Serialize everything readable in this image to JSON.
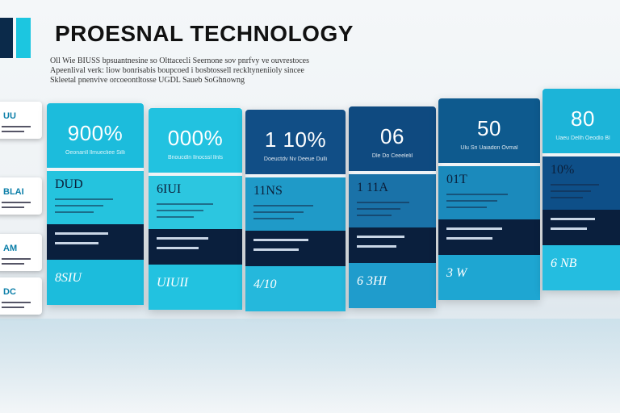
{
  "header": {
    "title": "PROESNAL TECHNOLOGY",
    "blurb": [
      "Oll Wie BIUSS bpsuantnesine so Olttacecli Seernone sov pnrfvy ve ouvrestoces",
      "Apeenlival verk: liow bonrisabis boupcoed i bosbtossell reckltyneniioly sincee",
      "Skleetal pnenvive orcoeontltosse UGDL Saueb SoGhnowng"
    ]
  },
  "side_tiles": [
    {
      "label": "UU"
    },
    {
      "label": "BLAI"
    },
    {
      "label": "AM"
    },
    {
      "label": "DC"
    }
  ],
  "panels": [
    {
      "big": "900%",
      "sub": "Oeonanll llmuecliee Silli",
      "mid": "DUD",
      "bottom": "8SIU",
      "top_color": "#1cbcdc",
      "mid_color": "#25c3de",
      "bottom_color": "#1cbcdc"
    },
    {
      "big": "000%",
      "sub": "Bnoucdln llnocssl llnls",
      "mid": "6IUI",
      "bottom": "UIUII",
      "top_color": "#22c2e0",
      "mid_color": "#2cc6e0",
      "bottom_color": "#22c2e0"
    },
    {
      "big": "1 10%",
      "sub": "Doeuctdv Nv Deeue Dulli",
      "mid": "11NS",
      "bottom": "4/10",
      "top_color": "#114e86",
      "mid_color": "#1f9ac8",
      "bottom_color": "#25b8dc"
    },
    {
      "big": "06",
      "sub": "Dle Do Ceeelelil",
      "mid": "1 11A",
      "bottom": "6 3HI",
      "top_color": "#0f4a80",
      "mid_color": "#1a72a8",
      "bottom_color": "#1f9ccc"
    },
    {
      "big": "50",
      "sub": "Ulu Sri Uaiadon Ovmal",
      "mid": "01T",
      "bottom": "3 W",
      "top_color": "#0e5a8e",
      "mid_color": "#1b8abc",
      "bottom_color": "#1ea6d2"
    },
    {
      "big": "80",
      "sub": "Uaeu Dellh Oeodlo Bl",
      "mid": "10%",
      "bottom": "6 NB",
      "top_color": "#1cb4d8",
      "mid_color": "#0e4f88",
      "bottom_color": "#24bde0"
    }
  ]
}
